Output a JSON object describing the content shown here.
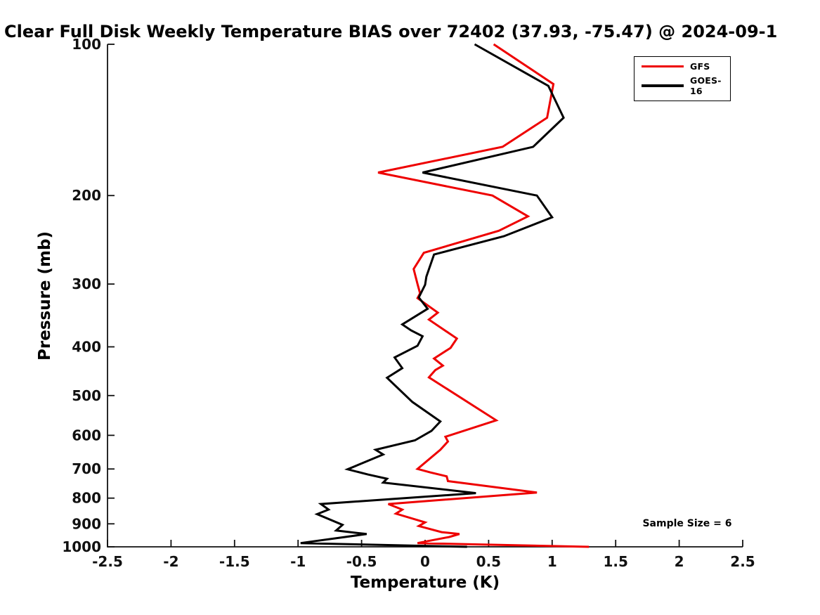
{
  "title": "Clear Full Disk Weekly Temperature BIAS over 72402 (37.93, -75.47) @ 2024-09-1",
  "annotations": {
    "sample_size": "Sample Size = 6"
  },
  "colors": {
    "gfs": "#ee0000",
    "goes16": "#000000",
    "axis": "#111111",
    "background": "#ffffff"
  },
  "chart_data": {
    "type": "line",
    "title": "Clear Full Disk Weekly Temperature BIAS over 72402 (37.93, -75.47) @ 2024-09-1",
    "xlabel": "Temperature (K)",
    "ylabel": "Pressure (mb)",
    "xlim": [
      -2.5,
      2.5
    ],
    "ylim": [
      100,
      1000
    ],
    "yscale": "log",
    "y_inverted": true,
    "grid": false,
    "box": false,
    "legend_position": "upper right",
    "xtick_labels": [
      "-2.5",
      "-2",
      "-1.5",
      "-1",
      "-0.5",
      "0",
      "0.5",
      "1",
      "1.5",
      "2",
      "2.5"
    ],
    "xtick_values": [
      -2.5,
      -2,
      -1.5,
      -1,
      -0.5,
      0,
      0.5,
      1,
      1.5,
      2,
      2.5
    ],
    "ytick_values": [
      100,
      200,
      300,
      400,
      500,
      600,
      700,
      800,
      900,
      1000
    ],
    "point_format": "[pressure_mb, bias_K]",
    "series": [
      {
        "name": "GFS",
        "color": "#ee0000",
        "points": [
          [
            100,
            0.54
          ],
          [
            120,
            1.01
          ],
          [
            140,
            0.96
          ],
          [
            160,
            0.61
          ],
          [
            180,
            -0.37
          ],
          [
            200,
            0.53
          ],
          [
            220,
            0.81
          ],
          [
            235,
            0.58
          ],
          [
            260,
            -0.01
          ],
          [
            280,
            -0.09
          ],
          [
            300,
            -0.06
          ],
          [
            313,
            -0.04
          ],
          [
            320,
            -0.06
          ],
          [
            342,
            0.1
          ],
          [
            353,
            0.03
          ],
          [
            385,
            0.25
          ],
          [
            402,
            0.2
          ],
          [
            422,
            0.07
          ],
          [
            436,
            0.14
          ],
          [
            445,
            0.08
          ],
          [
            460,
            0.03
          ],
          [
            560,
            0.56
          ],
          [
            604,
            0.16
          ],
          [
            617,
            0.18
          ],
          [
            641,
            0.12
          ],
          [
            700,
            -0.06
          ],
          [
            711,
            0.04
          ],
          [
            724,
            0.17
          ],
          [
            740,
            0.18
          ],
          [
            780,
            0.88
          ],
          [
            822,
            -0.29
          ],
          [
            843,
            -0.18
          ],
          [
            859,
            -0.23
          ],
          [
            894,
            0.0
          ],
          [
            909,
            -0.05
          ],
          [
            935,
            0.13
          ],
          [
            943,
            0.27
          ],
          [
            956,
            0.19
          ],
          [
            983,
            -0.06
          ],
          [
            1000,
            1.29
          ]
        ]
      },
      {
        "name": "GOES-16",
        "color": "#000000",
        "points": [
          [
            100,
            0.39
          ],
          [
            121,
            0.97
          ],
          [
            140,
            1.09
          ],
          [
            160,
            0.85
          ],
          [
            180,
            -0.02
          ],
          [
            200,
            0.88
          ],
          [
            221,
            1.0
          ],
          [
            241,
            0.62
          ],
          [
            262,
            0.07
          ],
          [
            290,
            0.01
          ],
          [
            301,
            0.0
          ],
          [
            319,
            -0.05
          ],
          [
            336,
            0.02
          ],
          [
            361,
            -0.18
          ],
          [
            371,
            -0.11
          ],
          [
            381,
            -0.02
          ],
          [
            398,
            -0.06
          ],
          [
            420,
            -0.24
          ],
          [
            441,
            -0.18
          ],
          [
            461,
            -0.3
          ],
          [
            515,
            -0.1
          ],
          [
            563,
            0.12
          ],
          [
            588,
            0.05
          ],
          [
            614,
            -0.08
          ],
          [
            641,
            -0.39
          ],
          [
            655,
            -0.33
          ],
          [
            701,
            -0.61
          ],
          [
            718,
            -0.45
          ],
          [
            732,
            -0.3
          ],
          [
            745,
            -0.33
          ],
          [
            782,
            0.4
          ],
          [
            822,
            -0.82
          ],
          [
            843,
            -0.76
          ],
          [
            861,
            -0.85
          ],
          [
            904,
            -0.65
          ],
          [
            928,
            -0.7
          ],
          [
            943,
            -0.46
          ],
          [
            983,
            -0.98
          ],
          [
            1000,
            0.33
          ]
        ]
      }
    ],
    "annotations": [
      {
        "text": "Sample Size = 6",
        "position": "lower right"
      }
    ]
  }
}
